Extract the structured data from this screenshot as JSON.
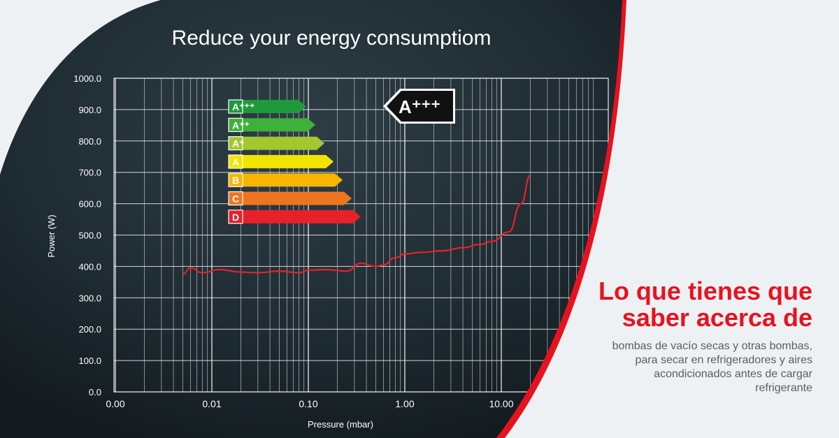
{
  "chart_data": {
    "type": "line",
    "title": "Reduce your energy consumptiom",
    "xlabel": "Pressure (mbar)",
    "ylabel": "Power (W)",
    "x_scale": "log",
    "grid": true,
    "legend": "none",
    "ylim": [
      0,
      1000
    ],
    "xlim": [
      0.001,
      20
    ],
    "x_ticks": [
      "0.00",
      "0.01",
      "0.10",
      "1.00",
      "10.00"
    ],
    "y_ticks": [
      "0.0",
      "100.0",
      "200.0",
      "300.0",
      "400.0",
      "500.0",
      "600.0",
      "700.0",
      "800.0",
      "900.0",
      "1000.0"
    ],
    "series": [
      {
        "color": "#e8202a",
        "x": [
          0.005,
          0.006,
          0.008,
          0.012,
          0.02,
          0.03,
          0.05,
          0.08,
          0.1,
          0.15,
          0.25,
          0.35,
          0.5,
          0.6,
          0.8,
          1.0,
          1.5,
          2.5,
          4.0,
          6.0,
          8.0,
          12.0,
          16.0,
          20.0
        ],
        "y": [
          375,
          395,
          380,
          390,
          382,
          380,
          385,
          380,
          388,
          390,
          385,
          410,
          400,
          405,
          428,
          440,
          445,
          450,
          460,
          470,
          480,
          510,
          600,
          690
        ]
      }
    ]
  },
  "energy_labels": [
    {
      "text": "A⁺⁺⁺",
      "color": "#1e9a3a"
    },
    {
      "text": "A⁺⁺",
      "color": "#3fb03a"
    },
    {
      "text": "A⁺",
      "color": "#a2c72f"
    },
    {
      "text": "A",
      "color": "#f2e400"
    },
    {
      "text": "B",
      "color": "#f7b500"
    },
    {
      "text": "C",
      "color": "#ef7420"
    },
    {
      "text": "D",
      "color": "#e8202a"
    }
  ],
  "rating": {
    "text": "A⁺⁺⁺"
  },
  "colors": {
    "accent": "#e8121f",
    "panel": "#1f2d35",
    "grid": "#ffffff"
  },
  "side": {
    "headline_1": "Lo que tienes que",
    "headline_2": "saber acerca de",
    "body_1": "bombas de vacío secas y otras bombas,",
    "body_2": "para secar en refrigeradores y aires",
    "body_3": "acondicionados antes de cargar",
    "body_4": "refrigerante"
  }
}
